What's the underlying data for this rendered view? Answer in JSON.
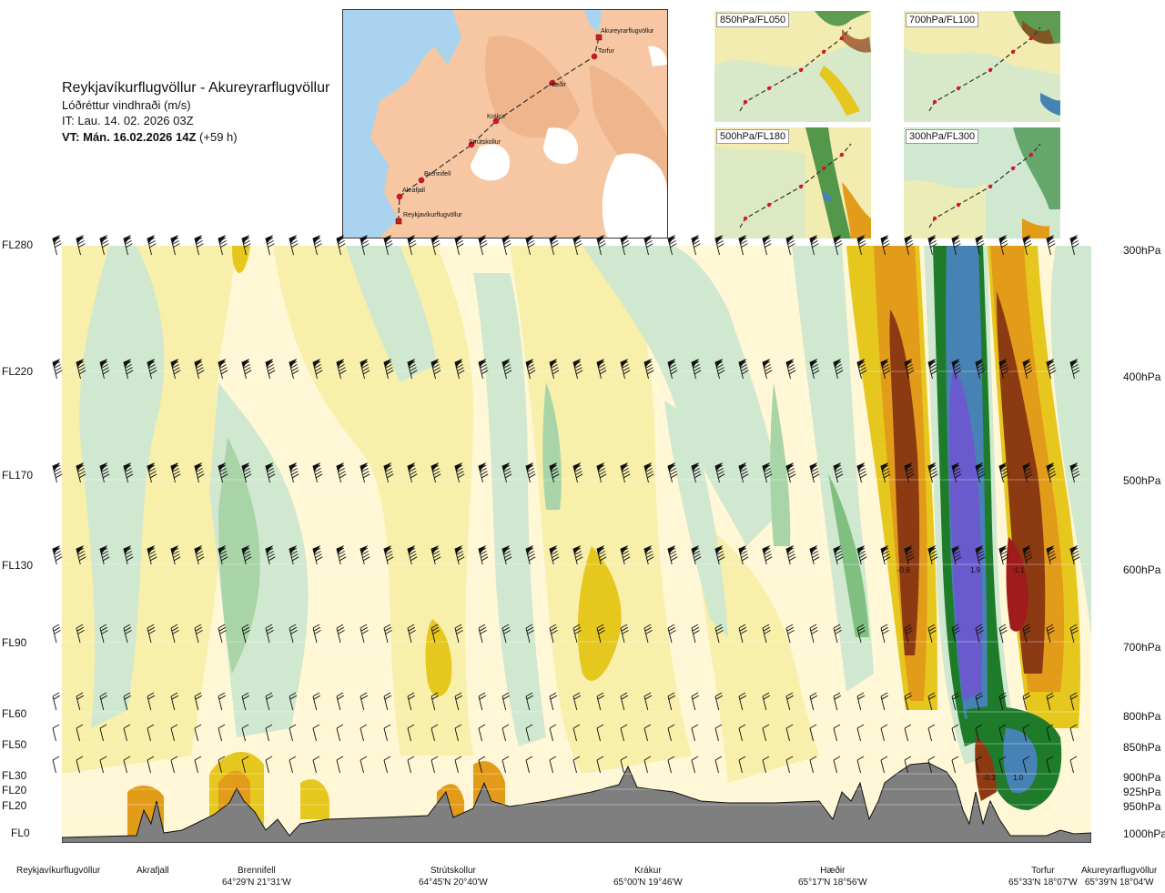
{
  "header": {
    "title": "Reykjavíkurflugvöllur - Akureyrarflugvöllur",
    "subtitle": "Lóðréttur vindhraði (m/s)",
    "issue_time": "IT: Lau. 14. 02. 2026 03Z",
    "valid_time_bold": "VT: Mán. 16.02.2026 14Z",
    "valid_time_offset": "(+59 h)"
  },
  "map": {
    "stations": [
      {
        "name": "Akureyrarflugvöllur"
      },
      {
        "name": "Torfur"
      },
      {
        "name": "Hæðir"
      },
      {
        "name": "Krákur"
      },
      {
        "name": "Strútskollur"
      },
      {
        "name": "Brennifell"
      },
      {
        "name": "Akrafjall"
      },
      {
        "name": "Reykjavíkurflugvöllur"
      }
    ],
    "colors": {
      "sea": "#a9d3ee",
      "land": "#f6c7a2",
      "highland": "#eaa67a",
      "glacier": "#ffffff",
      "route": "#333333",
      "station": "#e0112b"
    }
  },
  "thumbnails": [
    {
      "label": "850hPa/FL050"
    },
    {
      "label": "700hPa/FL100"
    },
    {
      "label": "500hPa/FL180"
    },
    {
      "label": "300hPa/FL300"
    }
  ],
  "chart_data": {
    "type": "heatmap",
    "title": "Lóðréttur vindhraði (m/s)",
    "y_left_labels": [
      "FL280",
      "FL220",
      "FL170",
      "FL130",
      "FL90",
      "FL60",
      "FL50",
      "FL30",
      "FL20",
      "FL20",
      "FL0"
    ],
    "y_right_labels": [
      "300hPa",
      "400hPa",
      "500hPa",
      "600hPa",
      "700hPa",
      "800hPa",
      "850hPa",
      "900hPa",
      "925hPa",
      "950hPa",
      "1000hPa"
    ],
    "pressure_levels_hPa": [
      300,
      400,
      500,
      600,
      700,
      800,
      850,
      900,
      925,
      950,
      1000
    ],
    "x_locations": [
      {
        "name": "Reykjavíkurflugvöllur",
        "coord": ""
      },
      {
        "name": "Akrafjall",
        "coord": ""
      },
      {
        "name": "Brennifell",
        "coord": "64°29'N 21°31'W"
      },
      {
        "name": "Strútskollur",
        "coord": "64°45'N 20°40'W"
      },
      {
        "name": "Krákur",
        "coord": "65°00'N 19°46'W"
      },
      {
        "name": "Hæðir",
        "coord": "65°17'N 18°56'W"
      },
      {
        "name": "Torfur",
        "coord": "65°33'N 18°07'W"
      },
      {
        "name": "Akureyrarflugvöllur",
        "coord": "65°39'N 18°04'W"
      }
    ],
    "annotations": [
      {
        "text": "-0.6",
        "location": "Hæðir–Torfur",
        "level": "600hPa"
      },
      {
        "text": "1.9",
        "location": "Hæðir–Torfur",
        "level": "600hPa"
      },
      {
        "text": "-1.1",
        "location": "Torfur",
        "level": "600hPa"
      },
      {
        "text": "-0.3",
        "location": "Torfur",
        "level": "900hPa"
      },
      {
        "text": "1.0",
        "location": "Torfur",
        "level": "900hPa"
      }
    ],
    "colors": {
      "strong_up": "#6a5acd",
      "up_mid": "#4682b4",
      "up_green": "#1e7b2a",
      "up_light": "#7fbf7f",
      "up_pale": "#cfe8cf",
      "neutral": "#fff7d6",
      "down_pale": "#f7efaa",
      "down_yellow": "#e6c71e",
      "down_orange": "#e39b1a",
      "down_brown": "#8b3a12",
      "down_red": "#a01c1c",
      "terrain": "#7f7f7f"
    },
    "grid": true
  }
}
